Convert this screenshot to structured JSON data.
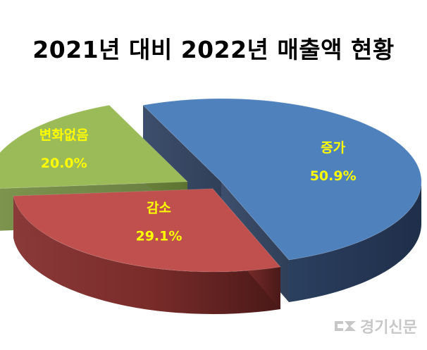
{
  "chart_data": {
    "type": "pie",
    "title": "2021년 대비 2022년 매출액 현황",
    "slices": [
      {
        "label": "증가",
        "value": 50.9,
        "value_label": "50.9%",
        "color": "#4f81bd"
      },
      {
        "label": "감소",
        "value": 29.1,
        "value_label": "29.1%",
        "color": "#c0504d"
      },
      {
        "label": "변화없음",
        "value": 20.0,
        "value_label": "20.0%",
        "color": "#9bbb59"
      }
    ],
    "style": "3d-exploded",
    "label_color": "#ffff00"
  },
  "watermark": {
    "text": "경기신문"
  }
}
